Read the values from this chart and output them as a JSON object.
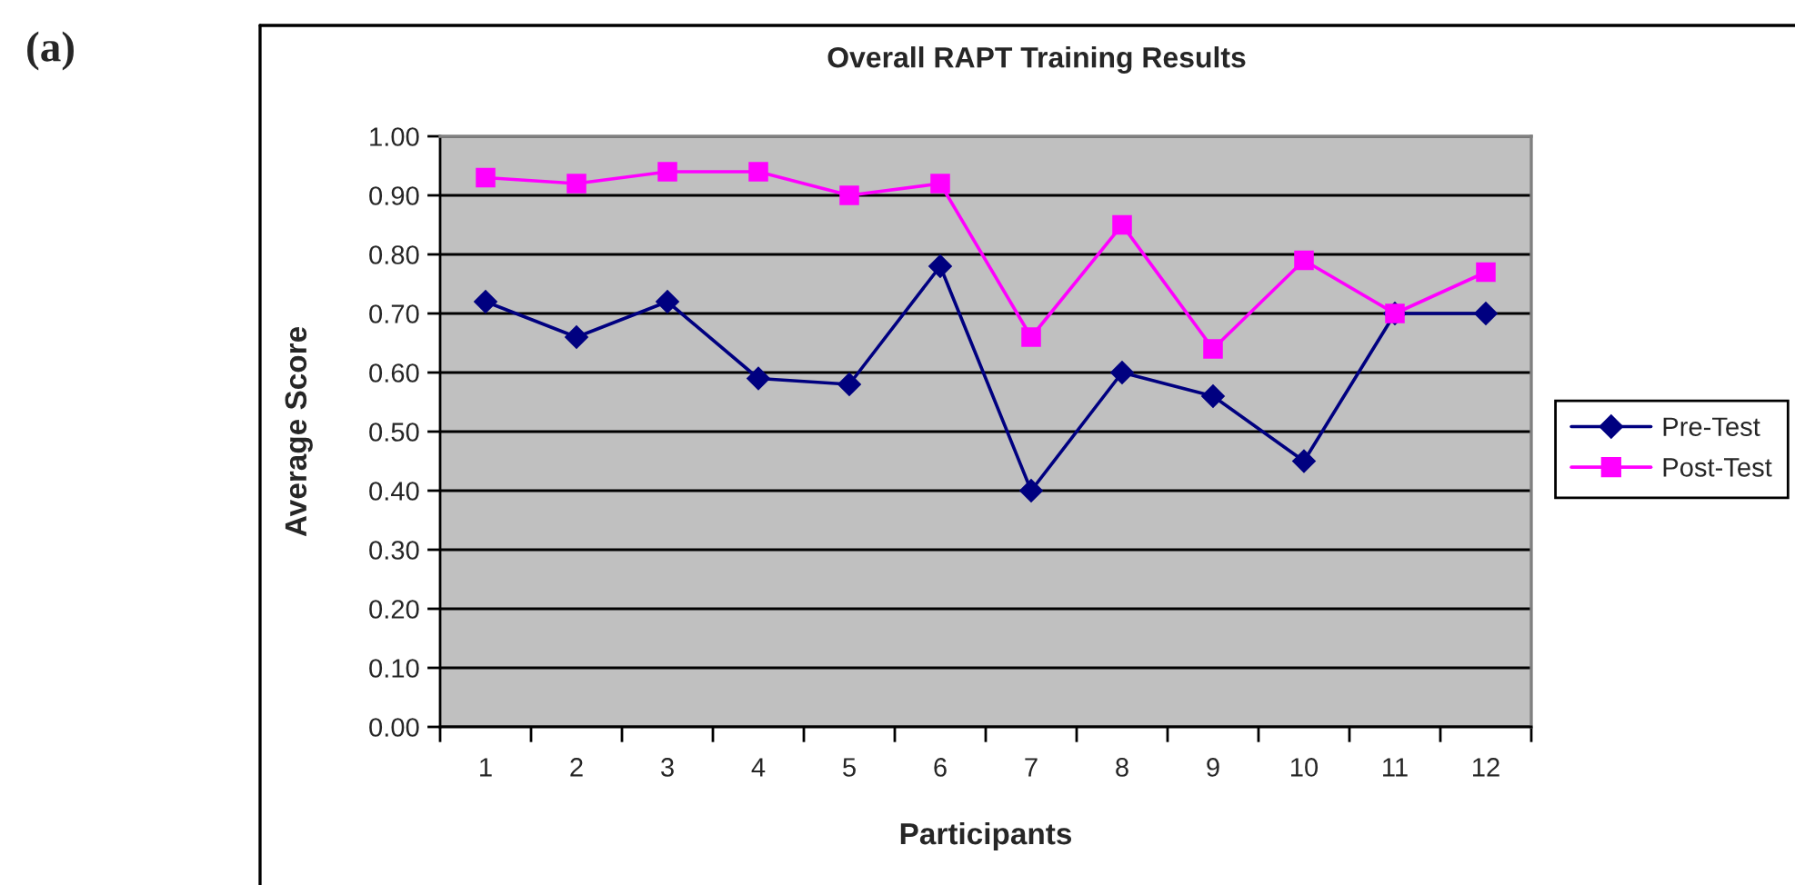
{
  "chart_data": {
    "type": "line",
    "title": "Overall RAPT Training Results",
    "xlabel": "Participants",
    "ylabel": "Average Score",
    "categories": [
      "1",
      "2",
      "3",
      "4",
      "5",
      "6",
      "7",
      "8",
      "9",
      "10",
      "11",
      "12"
    ],
    "series": [
      {
        "name": "Pre-Test",
        "color": "#000080",
        "marker": "diamond",
        "values": [
          0.72,
          0.66,
          0.72,
          0.59,
          0.58,
          0.78,
          0.4,
          0.6,
          0.56,
          0.45,
          0.7,
          0.7
        ]
      },
      {
        "name": "Post-Test",
        "color": "#ff00ff",
        "marker": "square",
        "values": [
          0.93,
          0.92,
          0.94,
          0.94,
          0.9,
          0.92,
          0.66,
          0.85,
          0.64,
          0.79,
          0.7,
          0.77
        ]
      }
    ],
    "ylim": [
      0,
      1
    ],
    "yticks": [
      {
        "value": 0,
        "label": "0.00"
      },
      {
        "value": 0.1,
        "label": "0.10"
      },
      {
        "value": 0.2,
        "label": "0.20"
      },
      {
        "value": 0.3,
        "label": "0.30"
      },
      {
        "value": 0.4,
        "label": "0.40"
      },
      {
        "value": 0.5,
        "label": "0.50"
      },
      {
        "value": 0.6,
        "label": "0.60"
      },
      {
        "value": 0.7,
        "label": "0.70"
      },
      {
        "value": 0.8,
        "label": "0.80"
      },
      {
        "value": 0.9,
        "label": "0.90"
      },
      {
        "value": 1,
        "label": "1.00"
      }
    ],
    "grid": "y",
    "legend": "right",
    "line_style": "solid",
    "annotations": [
      "(a)"
    ]
  }
}
